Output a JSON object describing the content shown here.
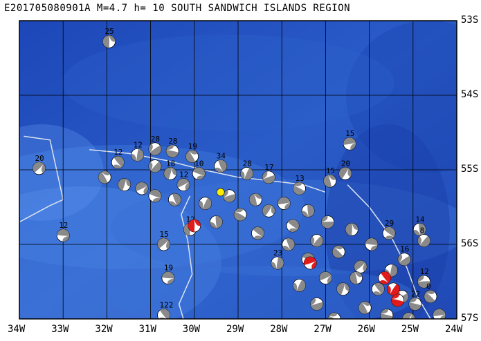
{
  "header": {
    "title": "E201705080901A M=4.7 h= 10 SOUTH SANDWICH ISLANDS REGION"
  },
  "map": {
    "region_name": "SOUTH SANDWICH ISLANDS REGION",
    "lon_range": [
      -34,
      -24
    ],
    "lat_range": [
      -57,
      -53
    ],
    "lat_labels": [
      "53S",
      "54S",
      "55S",
      "56S",
      "57S"
    ],
    "lon_labels": [
      "34W",
      "33W",
      "32W",
      "31W",
      "30W",
      "29W",
      "28W",
      "27W",
      "26W",
      "25W",
      "24W"
    ],
    "colors": {
      "ocean_deep": "#1f4fc4",
      "ocean_mid": "#2b62d0",
      "ocean_shallow": "#4d86e4",
      "grid": "#000000",
      "plate_boundary": "#dde4f0",
      "mechanism_dark": "#8a8a8a",
      "mechanism_light": "#ffffff",
      "highlight_event": "#e11b1b",
      "epicenter": "#ffee00"
    },
    "epicenter": {
      "lon": -29.4,
      "lat": -55.3
    },
    "mechanisms": [
      {
        "lon": -31.95,
        "lat": -53.28,
        "label": "25"
      },
      {
        "lon": -33.55,
        "lat": -54.98,
        "label": "20"
      },
      {
        "lon": -33.0,
        "lat": -55.88,
        "label": "12"
      },
      {
        "lon": -31.75,
        "lat": -54.9,
        "label": "12"
      },
      {
        "lon": -31.3,
        "lat": -54.8,
        "label": "12"
      },
      {
        "lon": -30.9,
        "lat": -54.72,
        "label": "28"
      },
      {
        "lon": -30.5,
        "lat": -54.75,
        "label": "28"
      },
      {
        "lon": -30.05,
        "lat": -54.82,
        "label": "19"
      },
      {
        "lon": -30.55,
        "lat": -55.05,
        "label": "18"
      },
      {
        "lon": -30.25,
        "lat": -55.2,
        "label": "12"
      },
      {
        "lon": -29.9,
        "lat": -55.05,
        "label": "10"
      },
      {
        "lon": -29.4,
        "lat": -54.95,
        "label": "34"
      },
      {
        "lon": -28.8,
        "lat": -55.05,
        "label": "28"
      },
      {
        "lon": -28.3,
        "lat": -55.1,
        "label": "17"
      },
      {
        "lon": -27.6,
        "lat": -55.25,
        "label": "13"
      },
      {
        "lon": -26.9,
        "lat": -55.15,
        "label": "15"
      },
      {
        "lon": -26.55,
        "lat": -55.05,
        "label": "20"
      },
      {
        "lon": -26.45,
        "lat": -54.65,
        "label": "15"
      },
      {
        "lon": -25.55,
        "lat": -55.85,
        "label": "29"
      },
      {
        "lon": -24.85,
        "lat": -55.8,
        "label": "14"
      },
      {
        "lon": -24.75,
        "lat": -55.95,
        "label": "8"
      },
      {
        "lon": -24.75,
        "lat": -56.5,
        "label": "12"
      },
      {
        "lon": -24.6,
        "lat": -56.7,
        "label": "0"
      },
      {
        "lon": -30.1,
        "lat": -55.8,
        "label": "12"
      },
      {
        "lon": -30.7,
        "lat": -56.0,
        "label": "15"
      },
      {
        "lon": -30.6,
        "lat": -56.45,
        "label": "19"
      },
      {
        "lon": -30.7,
        "lat": -56.95,
        "label": "122"
      },
      {
        "lon": -28.1,
        "lat": -56.25,
        "label": "23"
      },
      {
        "lon": -25.2,
        "lat": -56.2,
        "label": "16"
      },
      {
        "lon": -24.95,
        "lat": -56.8,
        "label": "22"
      },
      {
        "lon": -32.05,
        "lat": -55.1,
        "label": ""
      },
      {
        "lon": -31.6,
        "lat": -55.2,
        "label": ""
      },
      {
        "lon": -31.2,
        "lat": -55.25,
        "label": ""
      },
      {
        "lon": -30.9,
        "lat": -55.35,
        "label": ""
      },
      {
        "lon": -30.45,
        "lat": -55.4,
        "label": ""
      },
      {
        "lon": -29.75,
        "lat": -55.45,
        "label": ""
      },
      {
        "lon": -29.2,
        "lat": -55.35,
        "label": ""
      },
      {
        "lon": -28.95,
        "lat": -55.6,
        "label": ""
      },
      {
        "lon": -28.6,
        "lat": -55.4,
        "label": ""
      },
      {
        "lon": -28.3,
        "lat": -55.55,
        "label": ""
      },
      {
        "lon": -27.95,
        "lat": -55.45,
        "label": ""
      },
      {
        "lon": -27.75,
        "lat": -55.75,
        "label": ""
      },
      {
        "lon": -27.4,
        "lat": -55.55,
        "label": ""
      },
      {
        "lon": -27.2,
        "lat": -55.95,
        "label": ""
      },
      {
        "lon": -26.95,
        "lat": -55.7,
        "label": ""
      },
      {
        "lon": -26.7,
        "lat": -56.1,
        "label": ""
      },
      {
        "lon": -26.4,
        "lat": -55.8,
        "label": ""
      },
      {
        "lon": -26.2,
        "lat": -56.3,
        "label": ""
      },
      {
        "lon": -25.95,
        "lat": -56.0,
        "label": ""
      },
      {
        "lon": -25.8,
        "lat": -56.6,
        "label": ""
      },
      {
        "lon": -25.5,
        "lat": -56.35,
        "label": ""
      },
      {
        "lon": -25.25,
        "lat": -56.7,
        "label": ""
      },
      {
        "lon": -25.6,
        "lat": -56.95,
        "label": ""
      },
      {
        "lon": -26.1,
        "lat": -56.85,
        "label": ""
      },
      {
        "lon": -26.6,
        "lat": -56.6,
        "label": ""
      },
      {
        "lon": -27.0,
        "lat": -56.45,
        "label": ""
      },
      {
        "lon": -27.4,
        "lat": -56.2,
        "label": ""
      },
      {
        "lon": -27.85,
        "lat": -56.0,
        "label": ""
      },
      {
        "lon": -27.6,
        "lat": -56.55,
        "label": ""
      },
      {
        "lon": -27.2,
        "lat": -56.8,
        "label": ""
      },
      {
        "lon": -26.8,
        "lat": -57.0,
        "label": ""
      },
      {
        "lon": -26.3,
        "lat": -56.45,
        "label": ""
      },
      {
        "lon": -25.1,
        "lat": -57.0,
        "label": ""
      },
      {
        "lon": -24.4,
        "lat": -56.95,
        "label": ""
      },
      {
        "lon": -28.55,
        "lat": -55.85,
        "label": ""
      },
      {
        "lon": -29.5,
        "lat": -55.7,
        "label": ""
      },
      {
        "lon": -30.9,
        "lat": -54.95,
        "label": ""
      }
    ],
    "highlight_events": [
      {
        "lon": -30.0,
        "lat": -55.75
      },
      {
        "lon": -27.35,
        "lat": -56.25
      },
      {
        "lon": -25.65,
        "lat": -56.45
      },
      {
        "lon": -25.45,
        "lat": -56.6
      },
      {
        "lon": -25.35,
        "lat": -56.75
      }
    ]
  }
}
